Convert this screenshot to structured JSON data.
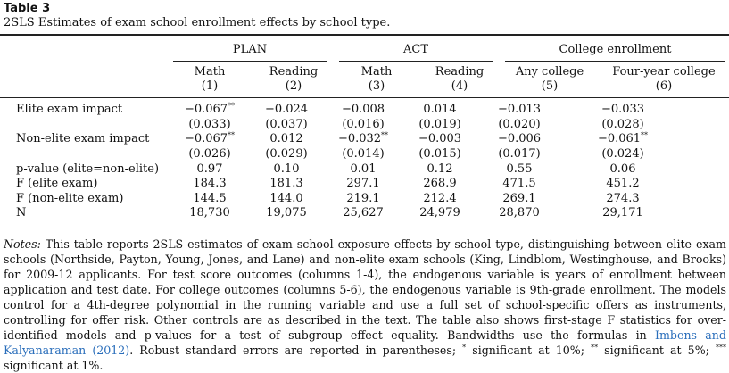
{
  "table_label": "Table 3",
  "caption": "2SLS Estimates of exam school enrollment effects by school type.",
  "groups": {
    "plan": "PLAN",
    "act": "ACT",
    "college": "College enrollment"
  },
  "columns": [
    {
      "name": "Math",
      "num": "(1)"
    },
    {
      "name": "Reading",
      "num": "(2)"
    },
    {
      "name": "Math",
      "num": "(3)"
    },
    {
      "name": "Reading",
      "num": "(4)"
    },
    {
      "name": "Any college",
      "num": "(5)"
    },
    {
      "name": "Four-year college",
      "num": "(6)"
    }
  ],
  "rows": [
    {
      "label": "Elite exam impact",
      "cells": [
        {
          "v": "−0.067",
          "s": "**"
        },
        {
          "v": "−0.024",
          "s": ""
        },
        {
          "v": "−0.008",
          "s": ""
        },
        {
          "v": "0.014",
          "s": ""
        },
        {
          "v": "−0.013",
          "s": ""
        },
        {
          "v": "−0.033",
          "s": ""
        }
      ]
    },
    {
      "label": "",
      "cells": [
        {
          "v": "(0.033)",
          "s": ""
        },
        {
          "v": "(0.037)",
          "s": ""
        },
        {
          "v": "(0.016)",
          "s": ""
        },
        {
          "v": "(0.019)",
          "s": ""
        },
        {
          "v": "(0.020)",
          "s": ""
        },
        {
          "v": "(0.028)",
          "s": ""
        }
      ]
    },
    {
      "label": "Non-elite exam impact",
      "cells": [
        {
          "v": "−0.067",
          "s": "**"
        },
        {
          "v": "0.012",
          "s": ""
        },
        {
          "v": "−0.032",
          "s": "**"
        },
        {
          "v": "−0.003",
          "s": ""
        },
        {
          "v": "−0.006",
          "s": ""
        },
        {
          "v": "−0.061",
          "s": "**"
        }
      ]
    },
    {
      "label": "",
      "cells": [
        {
          "v": "(0.026)",
          "s": ""
        },
        {
          "v": "(0.029)",
          "s": ""
        },
        {
          "v": "(0.014)",
          "s": ""
        },
        {
          "v": "(0.015)",
          "s": ""
        },
        {
          "v": "(0.017)",
          "s": ""
        },
        {
          "v": "(0.024)",
          "s": ""
        }
      ]
    },
    {
      "label": "p-value (elite=non-elite)",
      "cells": [
        {
          "v": "0.97",
          "s": ""
        },
        {
          "v": "0.10",
          "s": ""
        },
        {
          "v": "0.01",
          "s": ""
        },
        {
          "v": "0.12",
          "s": ""
        },
        {
          "v": "0.55",
          "s": ""
        },
        {
          "v": "0.06",
          "s": ""
        }
      ]
    },
    {
      "label": "F (elite exam)",
      "cells": [
        {
          "v": "184.3",
          "s": ""
        },
        {
          "v": "181.3",
          "s": ""
        },
        {
          "v": "297.1",
          "s": ""
        },
        {
          "v": "268.9",
          "s": ""
        },
        {
          "v": "471.5",
          "s": ""
        },
        {
          "v": "451.2",
          "s": ""
        }
      ]
    },
    {
      "label": "F (non-elite exam)",
      "cells": [
        {
          "v": "144.5",
          "s": ""
        },
        {
          "v": "144.0",
          "s": ""
        },
        {
          "v": "219.1",
          "s": ""
        },
        {
          "v": "212.4",
          "s": ""
        },
        {
          "v": "269.1",
          "s": ""
        },
        {
          "v": "274.3",
          "s": ""
        }
      ]
    },
    {
      "label": "N",
      "cells": [
        {
          "v": "18,730",
          "s": ""
        },
        {
          "v": "19,075",
          "s": ""
        },
        {
          "v": "25,627",
          "s": ""
        },
        {
          "v": "24,979",
          "s": ""
        },
        {
          "v": "28,870",
          "s": ""
        },
        {
          "v": "29,171",
          "s": ""
        }
      ]
    }
  ],
  "notes": {
    "label": "Notes:",
    "text_before": " This table reports 2SLS estimates of exam school exposure effects by school type, distinguishing between elite exam schools (Northside, Payton, Young, Jones, and Lane) and non-elite exam schools (King, Lindblom, Westinghouse, and Brooks) for 2009-12 applicants. For test score outcomes (columns 1-4), the endogenous variable is years of enrollment between application and test date. For college outcomes (columns 5-6), the endogenous variable is 9th-grade enrollment. The models control for a 4th-degree polynomial in the running variable and use a full set of school-specific offers as instruments, controlling for offer risk. Other controls are as described in the text. The table also shows first-stage F statistics for over-identified models and p-values for a test of subgroup effect equality. Bandwidths use the formulas in ",
    "citation": "Imbens and Kalyanaraman (2012)",
    "text_after_1": ". Robust standard errors are reported in parentheses; ",
    "sig1_mark": "*",
    "sig1_text": " significant at 10%; ",
    "sig2_mark": "**",
    "sig2_text": " significant at 5%; ",
    "sig3_mark": "***",
    "sig3_text": " significant at 1%."
  }
}
